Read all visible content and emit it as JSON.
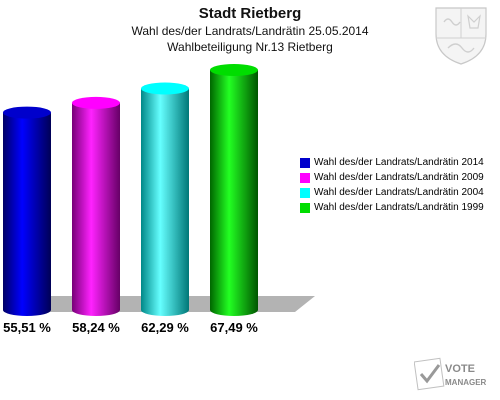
{
  "header": {
    "title": "Stadt Rietberg",
    "subtitle": "Wahl des/der Landrats/Landrätin 25.05.2014",
    "subtitle2": "Wahlbeteiligung Nr.13 Rietberg"
  },
  "chart_data": {
    "type": "bar",
    "title": "Stadt Rietberg",
    "categories": [
      "Wahl des/der Landrats/Landrätin 2014",
      "Wahl des/der Landrats/Landrätin 2009",
      "Wahl des/der Landrats/Landrätin 2004",
      "Wahl des/der Landrats/Landrätin 1999"
    ],
    "values": [
      55.51,
      58.24,
      62.29,
      67.49
    ],
    "value_labels": [
      "55,51 %",
      "58,24 %",
      "62,29 %",
      "67,49 %"
    ],
    "colors": [
      "#0000cc",
      "#ff00ff",
      "#00ffff",
      "#00dd00"
    ],
    "legend_position": "right",
    "grid": false
  },
  "branding": {
    "logo_text_1": "VOTE",
    "logo_text_2": "MANAGER"
  }
}
